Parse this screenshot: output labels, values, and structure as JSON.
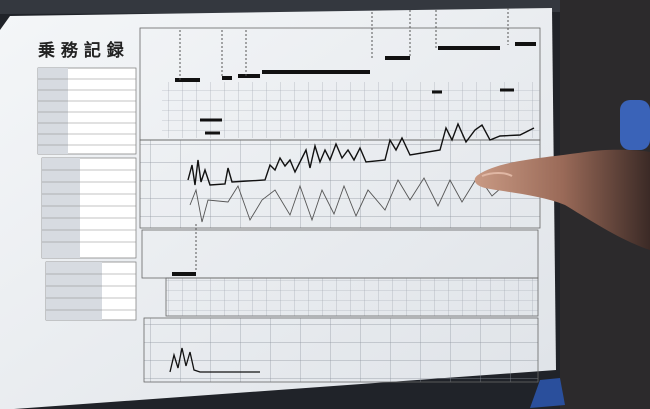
{
  "document": {
    "title": "乗 務 記 録"
  }
}
